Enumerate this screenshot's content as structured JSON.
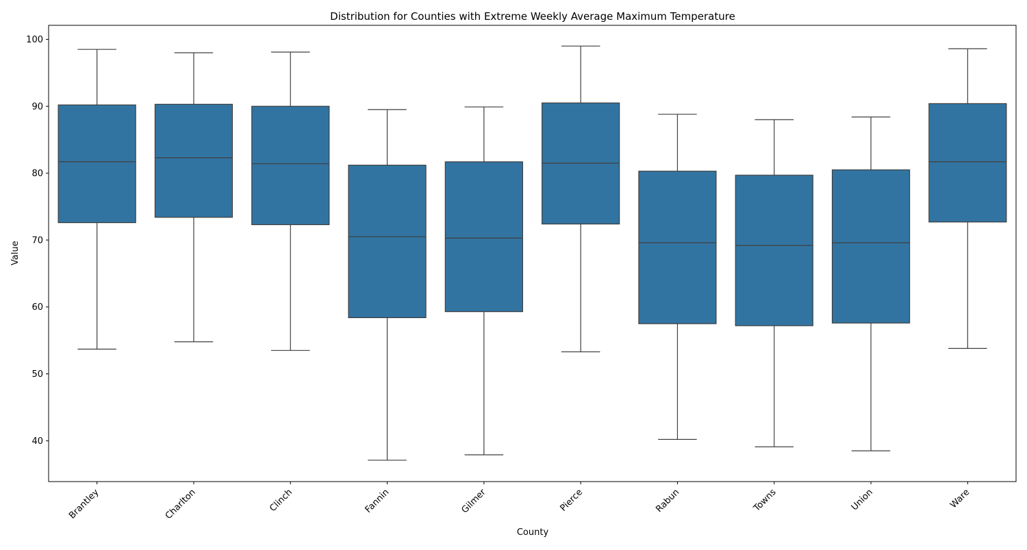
{
  "chart_data": {
    "type": "boxplot",
    "title": "Distribution for Counties with Extreme Weekly Average Maximum Temperature",
    "xlabel": "County",
    "ylabel": "Value",
    "ylim": [
      33.9,
      102.1
    ],
    "yticks": [
      40,
      50,
      60,
      70,
      80,
      90,
      100
    ],
    "grid": false,
    "box_color": "#3274a1",
    "line_color": "#3f3f3f",
    "categories": [
      "Brantley",
      "Charlton",
      "Clinch",
      "Fannin",
      "Gilmer",
      "Pierce",
      "Rabun",
      "Towns",
      "Union",
      "Ware"
    ],
    "boxes": [
      {
        "category": "Brantley",
        "whisker_low": 53.7,
        "q1": 72.6,
        "median": 81.7,
        "q3": 90.2,
        "whisker_high": 98.5
      },
      {
        "category": "Charlton",
        "whisker_low": 54.8,
        "q1": 73.4,
        "median": 82.3,
        "q3": 90.3,
        "whisker_high": 98.0
      },
      {
        "category": "Clinch",
        "whisker_low": 53.5,
        "q1": 72.3,
        "median": 81.4,
        "q3": 90.0,
        "whisker_high": 98.1
      },
      {
        "category": "Fannin",
        "whisker_low": 37.1,
        "q1": 58.4,
        "median": 70.5,
        "q3": 81.2,
        "whisker_high": 89.5
      },
      {
        "category": "Gilmer",
        "whisker_low": 37.9,
        "q1": 59.3,
        "median": 70.3,
        "q3": 81.7,
        "whisker_high": 89.9
      },
      {
        "category": "Pierce",
        "whisker_low": 53.3,
        "q1": 72.4,
        "median": 81.5,
        "q3": 90.5,
        "whisker_high": 99.0
      },
      {
        "category": "Rabun",
        "whisker_low": 40.2,
        "q1": 57.5,
        "median": 69.6,
        "q3": 80.3,
        "whisker_high": 88.8
      },
      {
        "category": "Towns",
        "whisker_low": 39.1,
        "q1": 57.2,
        "median": 69.2,
        "q3": 79.7,
        "whisker_high": 88.0
      },
      {
        "category": "Union",
        "whisker_low": 38.5,
        "q1": 57.6,
        "median": 69.6,
        "q3": 80.5,
        "whisker_high": 88.4
      },
      {
        "category": "Ware",
        "whisker_low": 53.8,
        "q1": 72.7,
        "median": 81.7,
        "q3": 90.4,
        "whisker_high": 98.6
      }
    ]
  }
}
